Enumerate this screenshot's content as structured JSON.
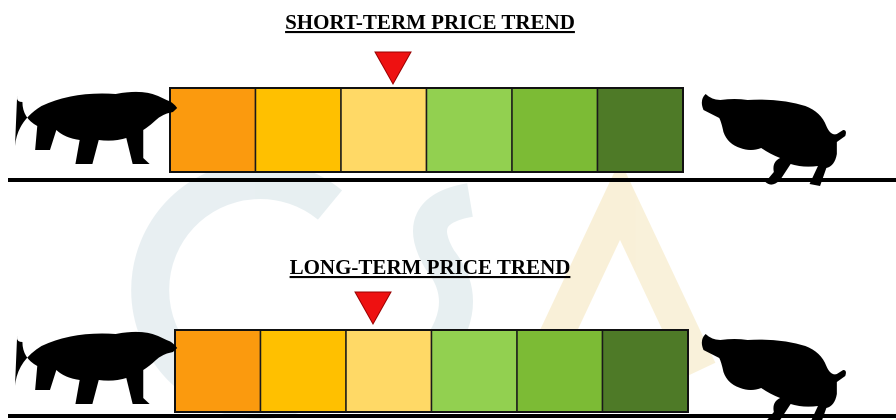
{
  "panels": [
    {
      "title": "SHORT-TERM PRICE TREND"
    },
    {
      "title": "LONG-TERM PRICE TREND"
    }
  ],
  "segment_colors": [
    "#fb9a0e",
    "#ffc000",
    "#ffd966",
    "#92d050",
    "#7cbb35",
    "#4e7a27"
  ]
}
